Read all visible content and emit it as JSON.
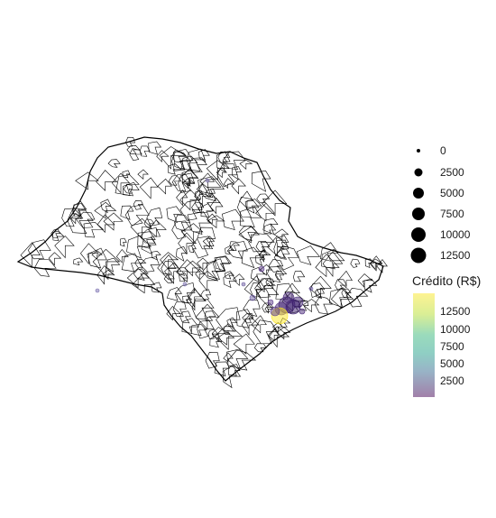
{
  "map": {
    "region": "São Paulo state municipalities",
    "boundary_color": "#000000",
    "fill_color": "#ffffff",
    "point_color_low": "#440154",
    "point_color_high": "#fde725",
    "point_opacity": 0.5
  },
  "legend_size": {
    "items": [
      {
        "label": "0"
      },
      {
        "label": "2500"
      },
      {
        "label": "5000"
      },
      {
        "label": "7500"
      },
      {
        "label": "10000"
      },
      {
        "label": "12500"
      }
    ]
  },
  "legend_color": {
    "title": "Crédito (R$)",
    "ticks": [
      "12500",
      "10000",
      "7500",
      "5000",
      "2500"
    ]
  }
}
